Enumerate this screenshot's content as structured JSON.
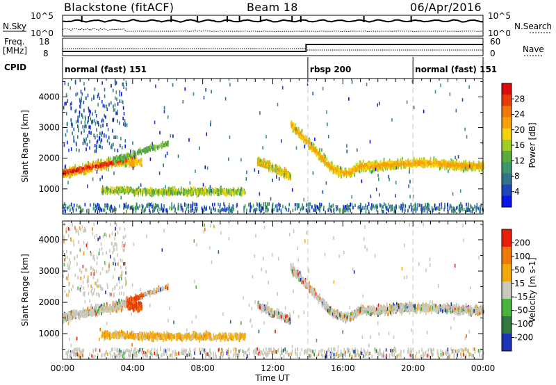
{
  "header": {
    "radar": "Blackstone (fitACF)",
    "beam": "Beam 18",
    "date": "06/Apr/2016"
  },
  "top_panel": {
    "left_label": "N.Sky",
    "right_label": "N.Search",
    "tick_hi": "10^5",
    "tick_lo": "10^0"
  },
  "freq_panel": {
    "left_label": "Freq.",
    "left_unit": "[MHz]",
    "right_label": "Nave",
    "left_ticks": [
      "18",
      "8"
    ],
    "right_ticks": [
      "60",
      "0"
    ]
  },
  "cpid_panel": {
    "label": "CPID",
    "segments": [
      {
        "name": "normal (fast) 151",
        "start_hour": 0,
        "end_hour": 14
      },
      {
        "name": "rbsp 200",
        "start_hour": 14,
        "end_hour": 20
      },
      {
        "name": "normal (fast) 151",
        "start_hour": 20,
        "end_hour": 24
      }
    ]
  },
  "chart_data": [
    {
      "type": "heatmap",
      "title": "",
      "xlabel": "Time UT",
      "ylabel": "Slant Range [km]",
      "x_ticks": [
        "00:00",
        "04:00",
        "08:00",
        "12:00",
        "16:00",
        "20:00",
        "00:00"
      ],
      "xlim_hours": [
        0,
        24
      ],
      "y_ticks": [
        "1000",
        "2000",
        "3000",
        "4000"
      ],
      "ylim": [
        180,
        4600
      ],
      "colorbar": {
        "label": "Power [dB]",
        "ticks": [
          "4",
          "8",
          "12",
          "16",
          "20",
          "24",
          "28"
        ],
        "range": [
          0,
          30
        ]
      },
      "features": [
        {
          "name": "main scatter band",
          "start_hour": 0,
          "end_hour": 4.2,
          "range_km_start": 1500,
          "range_km_end": 2050
        },
        {
          "name": "low range band",
          "start_hour": 2.2,
          "end_hour": 10.4,
          "range_km": 900
        },
        {
          "name": "evening band",
          "start_hour": 13,
          "end_hour": 24,
          "range_km": 1800
        }
      ]
    },
    {
      "type": "heatmap",
      "title": "",
      "xlabel": "Time UT",
      "ylabel": "Slant Range [km]",
      "x_ticks": [
        "00:00",
        "04:00",
        "08:00",
        "12:00",
        "16:00",
        "20:00",
        "00:00"
      ],
      "xlim_hours": [
        0,
        24
      ],
      "y_ticks": [
        "1000",
        "2000",
        "3000",
        "4000"
      ],
      "ylim": [
        180,
        4600
      ],
      "colorbar": {
        "label": "Velocity [m s-1]",
        "ticks": [
          "200",
          "100",
          "50",
          "15",
          "-15",
          "-50",
          "-100",
          "-200"
        ],
        "range": [
          -250,
          250
        ]
      }
    }
  ],
  "colors": {
    "power_scale": [
      "#0a14e6",
      "#1e46b4",
      "#32738c",
      "#3c966e",
      "#5aaa3c",
      "#a0cc28",
      "#f5d20a",
      "#f5a00a",
      "#f07808",
      "#e63c0a",
      "#dc0a0a"
    ],
    "velocity_scale": [
      "#1e32b4",
      "#327840",
      "#4ab43c",
      "#c8c8bc",
      "#f5a80a",
      "#f07808",
      "#e61e0a"
    ],
    "gray_scatter": "#c8c8bc"
  }
}
